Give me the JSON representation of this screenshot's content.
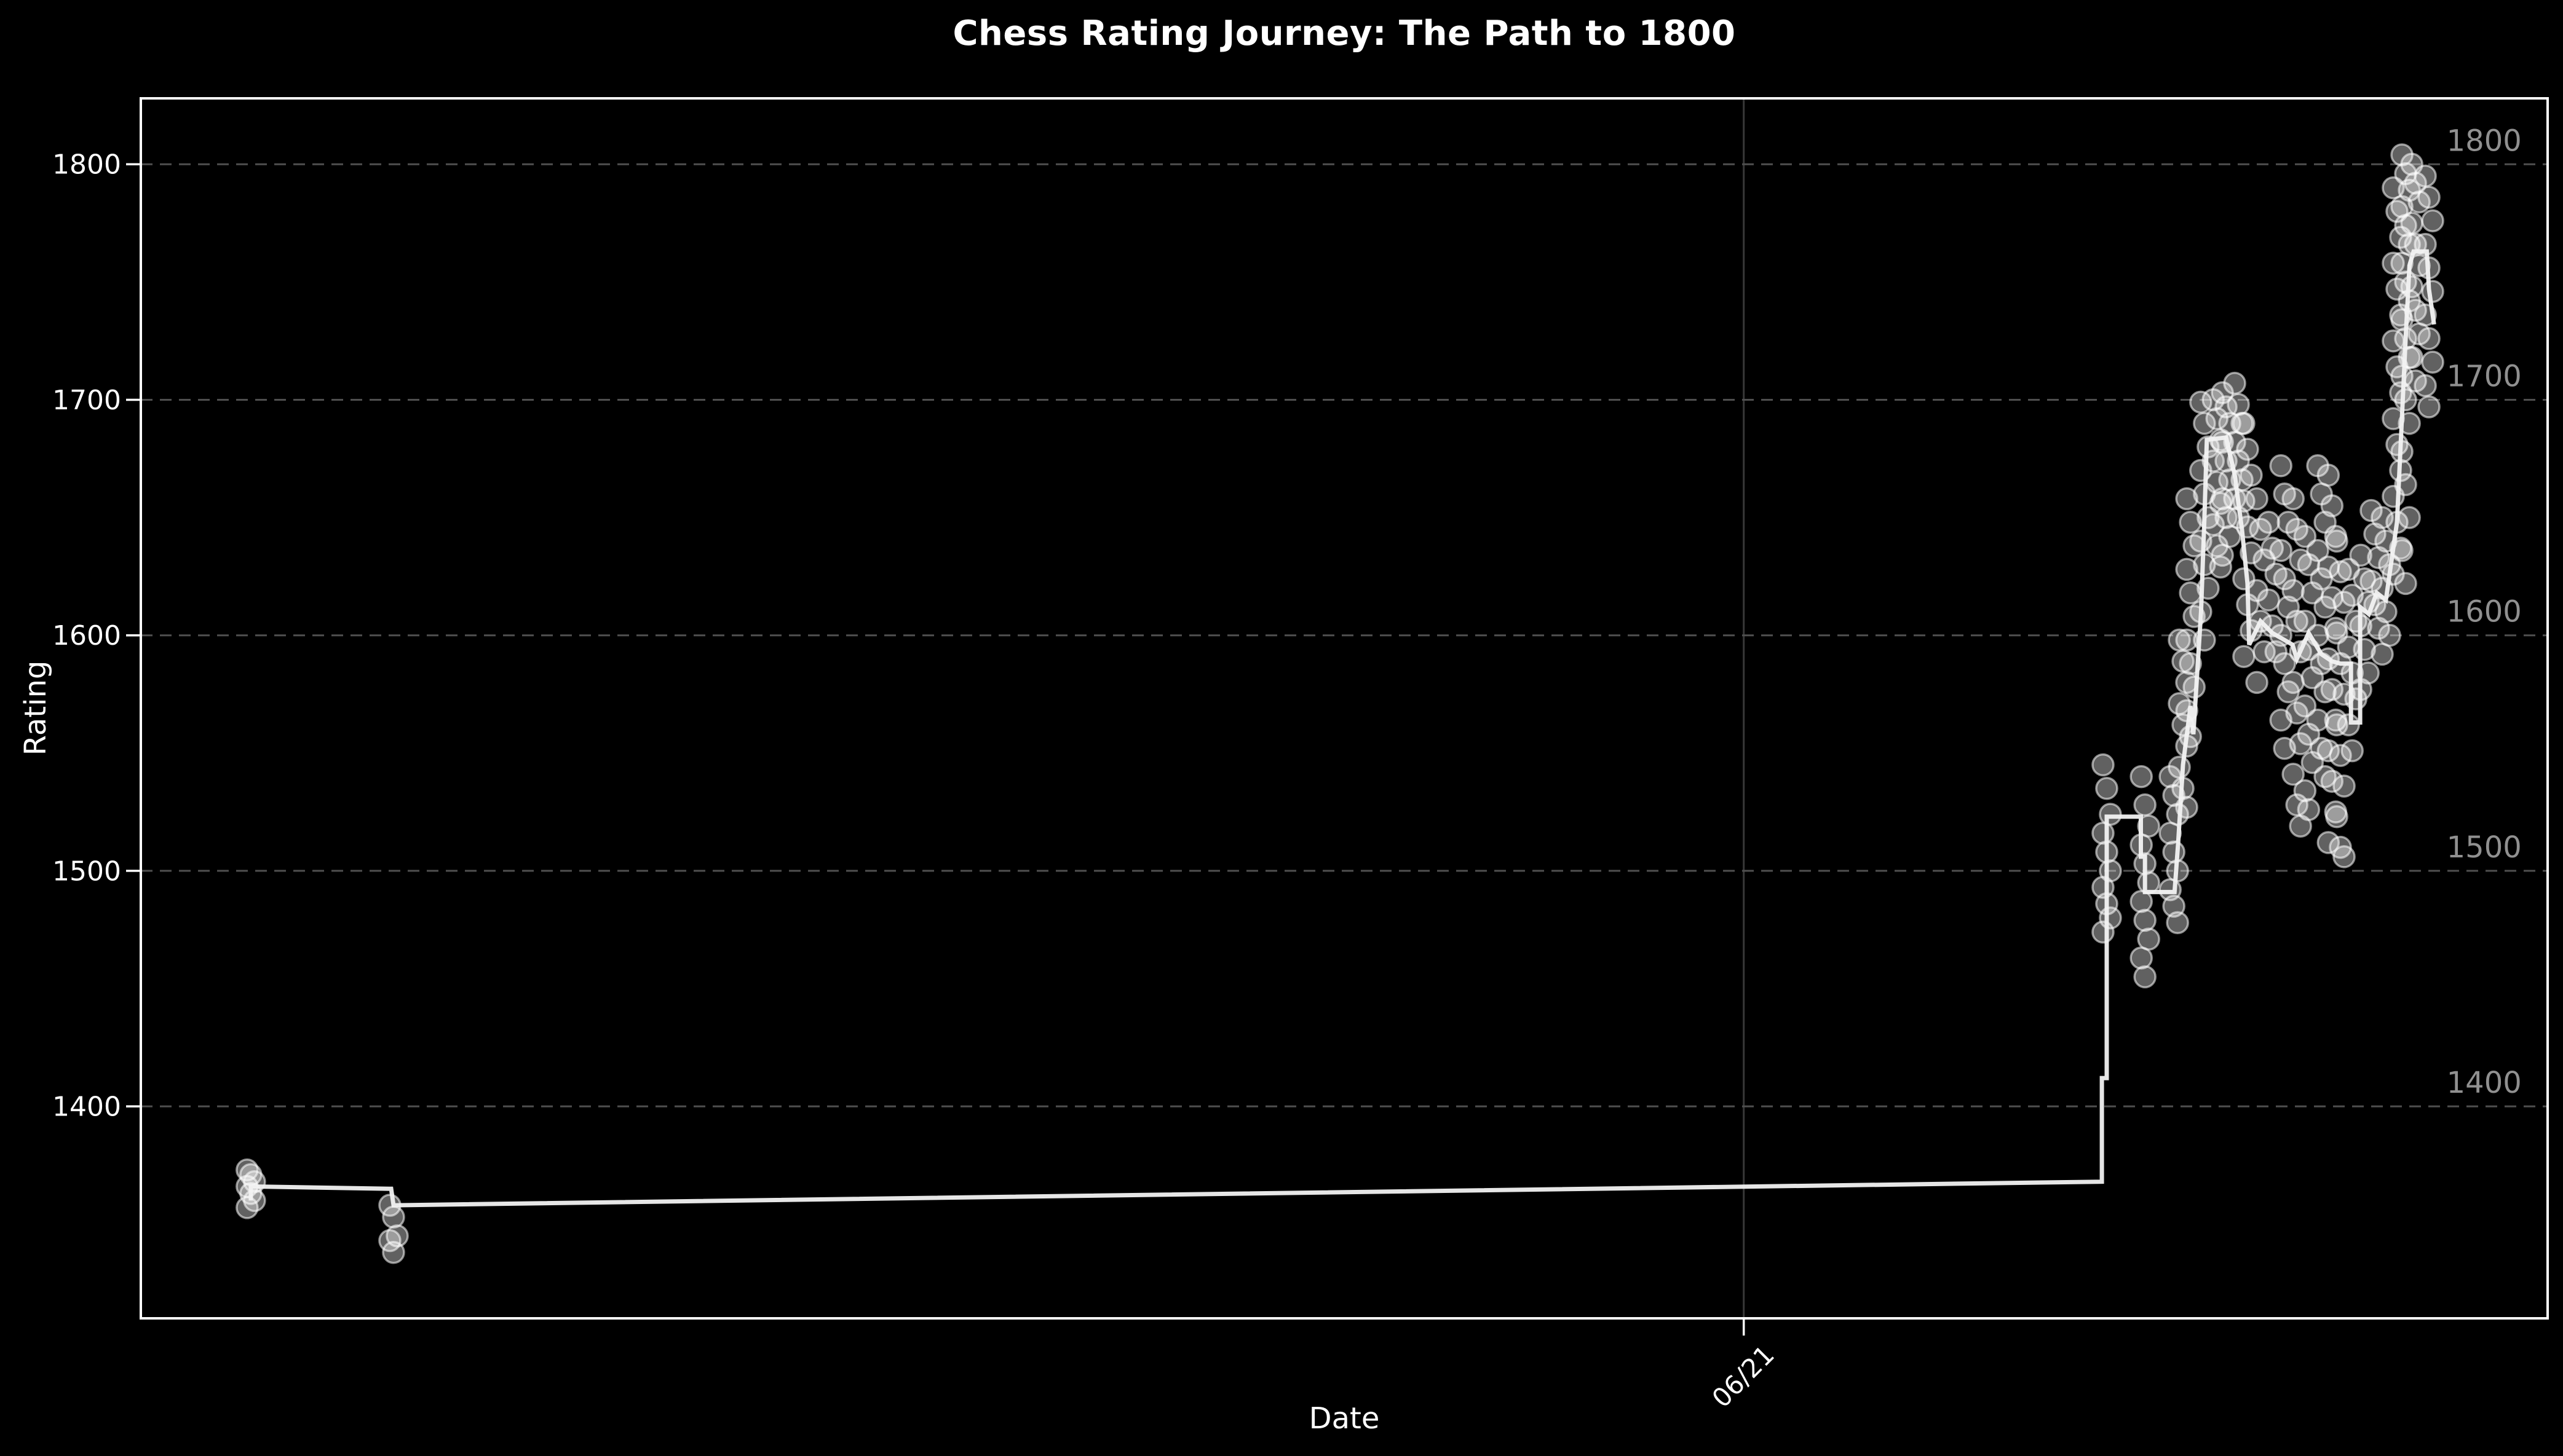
{
  "page": {
    "background_color": "#000000"
  },
  "chart_data": {
    "type": "line",
    "title": "Chess Rating Journey: The Path to 1800",
    "xlabel": "Date",
    "ylabel": "Rating",
    "ylim": [
      1310,
      1828
    ],
    "y_ticks": [
      1400,
      1500,
      1600,
      1700,
      1800
    ],
    "x_axis": {
      "ticks": [
        {
          "label": "06/21",
          "frac": 0.666
        }
      ],
      "note_x_units": "fraction of x-axis width, only tick visible is 06/21"
    },
    "grid": {
      "horizontal": true,
      "dashed": true,
      "color": "#4f4f4f",
      "vline_frac": 0.666,
      "vline_color": "#383838"
    },
    "legend": {
      "shown": false
    },
    "milestones": {
      "values": [
        1800,
        1700,
        1600,
        1500,
        1400
      ],
      "color": "#909090",
      "x_frac": 0.958
    },
    "colors": {
      "line": "rgba(242,242,242,0.95)",
      "scatter_fill": "rgba(255,255,255,0.38)",
      "scatter_stroke": "rgba(255,255,255,0.55)",
      "spine": "#ffffff",
      "tick_label": "#ffffff",
      "title": "#ffffff"
    },
    "line_points": [
      [
        0.0457,
        1360
      ],
      [
        0.0457,
        1366
      ],
      [
        0.104,
        1365
      ],
      [
        0.105,
        1358
      ],
      [
        0.8148,
        1368
      ],
      [
        0.8148,
        1412
      ],
      [
        0.8168,
        1412
      ],
      [
        0.8168,
        1523
      ],
      [
        0.831,
        1523
      ],
      [
        0.831,
        1506
      ],
      [
        0.8327,
        1506
      ],
      [
        0.8327,
        1491
      ],
      [
        0.845,
        1491
      ],
      [
        0.8465,
        1512
      ],
      [
        0.8485,
        1545
      ],
      [
        0.8516,
        1570
      ],
      [
        0.8528,
        1558
      ],
      [
        0.856,
        1610
      ],
      [
        0.8574,
        1650
      ],
      [
        0.8584,
        1683
      ],
      [
        0.8664,
        1684
      ],
      [
        0.87,
        1668
      ],
      [
        0.873,
        1645
      ],
      [
        0.8753,
        1622
      ],
      [
        0.876,
        1596
      ],
      [
        0.8807,
        1606
      ],
      [
        0.8856,
        1601
      ],
      [
        0.8907,
        1598
      ],
      [
        0.894,
        1596
      ],
      [
        0.8958,
        1590
      ],
      [
        0.9007,
        1601
      ],
      [
        0.906,
        1592
      ],
      [
        0.9104,
        1589
      ],
      [
        0.9139,
        1588
      ],
      [
        0.9183,
        1588
      ],
      [
        0.9183,
        1563
      ],
      [
        0.9221,
        1563
      ],
      [
        0.9221,
        1612
      ],
      [
        0.9257,
        1609
      ],
      [
        0.929,
        1618
      ],
      [
        0.9328,
        1615
      ],
      [
        0.9374,
        1648
      ],
      [
        0.939,
        1682
      ],
      [
        0.941,
        1726
      ],
      [
        0.9426,
        1757
      ],
      [
        0.9443,
        1763
      ],
      [
        0.9498,
        1763
      ],
      [
        0.9507,
        1747
      ],
      [
        0.9528,
        1732
      ]
    ],
    "scatter_columns": [
      {
        "x": 0.0457,
        "ratings": [
          1373,
          1371,
          1368,
          1366,
          1363,
          1360,
          1357
        ]
      },
      {
        "x": 0.105,
        "ratings": [
          1358,
          1353,
          1345,
          1343,
          1338
        ]
      },
      {
        "x": 0.8168,
        "ratings": [
          1545,
          1535,
          1524,
          1516,
          1508,
          1500,
          1493,
          1486,
          1480,
          1474
        ]
      },
      {
        "x": 0.8327,
        "ratings": [
          1540,
          1528,
          1519,
          1511,
          1503,
          1495,
          1487,
          1479,
          1471,
          1463,
          1455
        ]
      },
      {
        "x": 0.8447,
        "ratings": [
          1540,
          1532,
          1524,
          1516,
          1508,
          1500,
          1492,
          1485,
          1478
        ]
      },
      {
        "x": 0.8485,
        "ratings": [
          1598,
          1589,
          1580,
          1571,
          1562,
          1553,
          1544,
          1535,
          1527
        ]
      },
      {
        "x": 0.8516,
        "ratings": [
          1658,
          1648,
          1638,
          1628,
          1618,
          1608,
          1598,
          1588,
          1578,
          1568,
          1557
        ]
      },
      {
        "x": 0.8574,
        "ratings": [
          1699,
          1690,
          1680,
          1670,
          1660,
          1650,
          1640,
          1630,
          1620,
          1610,
          1598
        ]
      },
      {
        "x": 0.8626,
        "ratings": [
          1700,
          1692,
          1683,
          1674,
          1665,
          1656,
          1647,
          1638,
          1629
        ]
      },
      {
        "x": 0.8664,
        "ratings": [
          1703,
          1697,
          1690,
          1682,
          1674,
          1666,
          1658,
          1650,
          1642,
          1634
        ]
      },
      {
        "x": 0.8715,
        "ratings": [
          1707,
          1698,
          1690,
          1682,
          1674,
          1666,
          1658,
          1650
        ]
      },
      {
        "x": 0.8753,
        "ratings": [
          1690,
          1679,
          1668,
          1657,
          1646,
          1635,
          1624,
          1613,
          1602,
          1591
        ]
      },
      {
        "x": 0.8807,
        "ratings": [
          1658,
          1645,
          1632,
          1619,
          1606,
          1593,
          1580
        ]
      },
      {
        "x": 0.8856,
        "ratings": [
          1648,
          1637,
          1626,
          1615,
          1604,
          1593
        ]
      },
      {
        "x": 0.8907,
        "ratings": [
          1672,
          1660,
          1648,
          1636,
          1624,
          1612,
          1600,
          1588,
          1576,
          1564,
          1552
        ]
      },
      {
        "x": 0.8958,
        "ratings": [
          1658,
          1645,
          1632,
          1619,
          1606,
          1593,
          1580,
          1567,
          1554,
          1541,
          1528,
          1519
        ]
      },
      {
        "x": 0.9007,
        "ratings": [
          1642,
          1630,
          1618,
          1606,
          1594,
          1582,
          1570,
          1558,
          1546,
          1534,
          1526
        ]
      },
      {
        "x": 0.906,
        "ratings": [
          1672,
          1660,
          1648,
          1636,
          1624,
          1612,
          1600,
          1588,
          1576,
          1564,
          1552,
          1540
        ]
      },
      {
        "x": 0.9104,
        "ratings": [
          1668,
          1655,
          1642,
          1629,
          1616,
          1603,
          1590,
          1577,
          1564,
          1551,
          1538,
          1525,
          1512
        ]
      },
      {
        "x": 0.9139,
        "ratings": [
          1640,
          1627,
          1614,
          1601,
          1588,
          1575,
          1562,
          1549,
          1536,
          1523,
          1510,
          1506
        ]
      },
      {
        "x": 0.9188,
        "ratings": [
          1628,
          1617,
          1606,
          1595,
          1584,
          1573,
          1562,
          1551
        ]
      },
      {
        "x": 0.9239,
        "ratings": [
          1634,
          1624,
          1614,
          1604,
          1594,
          1584,
          1577
        ]
      },
      {
        "x": 0.9282,
        "ratings": [
          1653,
          1643,
          1633,
          1623,
          1613,
          1603
        ]
      },
      {
        "x": 0.9328,
        "ratings": [
          1650,
          1640,
          1630,
          1620,
          1610,
          1600,
          1592
        ]
      },
      {
        "x": 0.9374,
        "ratings": [
          1790,
          1780,
          1769,
          1758,
          1747,
          1736,
          1725,
          1714,
          1703,
          1692,
          1681,
          1670,
          1659,
          1648,
          1637,
          1626
        ]
      },
      {
        "x": 0.941,
        "ratings": [
          1804,
          1796,
          1789,
          1782,
          1774,
          1766,
          1758,
          1750,
          1742,
          1734,
          1726,
          1718,
          1710,
          1700,
          1690,
          1678,
          1664,
          1650,
          1636,
          1622
        ]
      },
      {
        "x": 0.9451,
        "ratings": [
          1800,
          1792,
          1784,
          1775,
          1766,
          1757,
          1748,
          1738,
          1728,
          1718,
          1708
        ]
      },
      {
        "x": 0.9507,
        "ratings": [
          1795,
          1786,
          1776,
          1766,
          1756,
          1746,
          1736,
          1726,
          1716,
          1706,
          1697
        ]
      }
    ]
  }
}
